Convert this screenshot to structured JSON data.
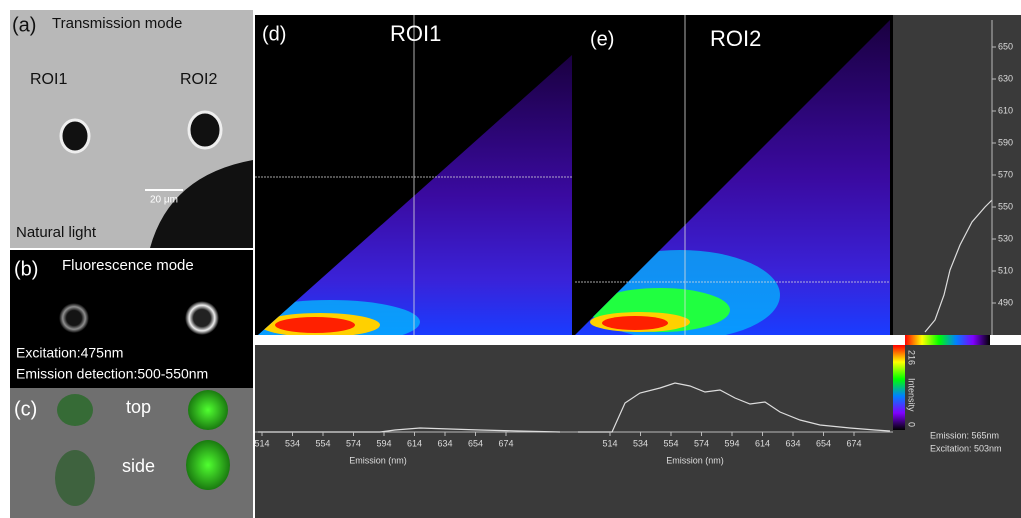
{
  "panels": {
    "a": {
      "label": "(a)",
      "title": "Transmission mode",
      "roi1": "ROI1",
      "roi2": "ROI2",
      "scale_bar": "20 μm",
      "caption": "Natural light"
    },
    "b": {
      "label": "(b)",
      "title": "Fluorescence mode",
      "excitation": "Excitation:475nm",
      "emission": "Emission detection:500-550nm"
    },
    "c": {
      "label": "(c)",
      "top": "top",
      "side": "side"
    },
    "d": {
      "label": "(d)",
      "roi": "ROI1",
      "x_label": "Emission (nm)",
      "x_ticks": [
        514,
        534,
        554,
        574,
        594,
        614,
        634,
        654,
        674
      ]
    },
    "e": {
      "label": "(e)",
      "roi": "ROI2",
      "x_label": "Emission (nm)",
      "x_ticks": [
        514,
        534,
        554,
        574,
        594,
        614,
        634,
        654,
        674
      ]
    }
  },
  "excitation_axis": {
    "ticks": [
      650,
      630,
      610,
      590,
      570,
      550,
      530,
      510,
      490
    ]
  },
  "colorbar": {
    "max": "216",
    "label": "Intensity",
    "min": "0"
  },
  "cursor": {
    "emission": "Emission: 565nm",
    "excitation": "Excitation: 503nm"
  }
}
